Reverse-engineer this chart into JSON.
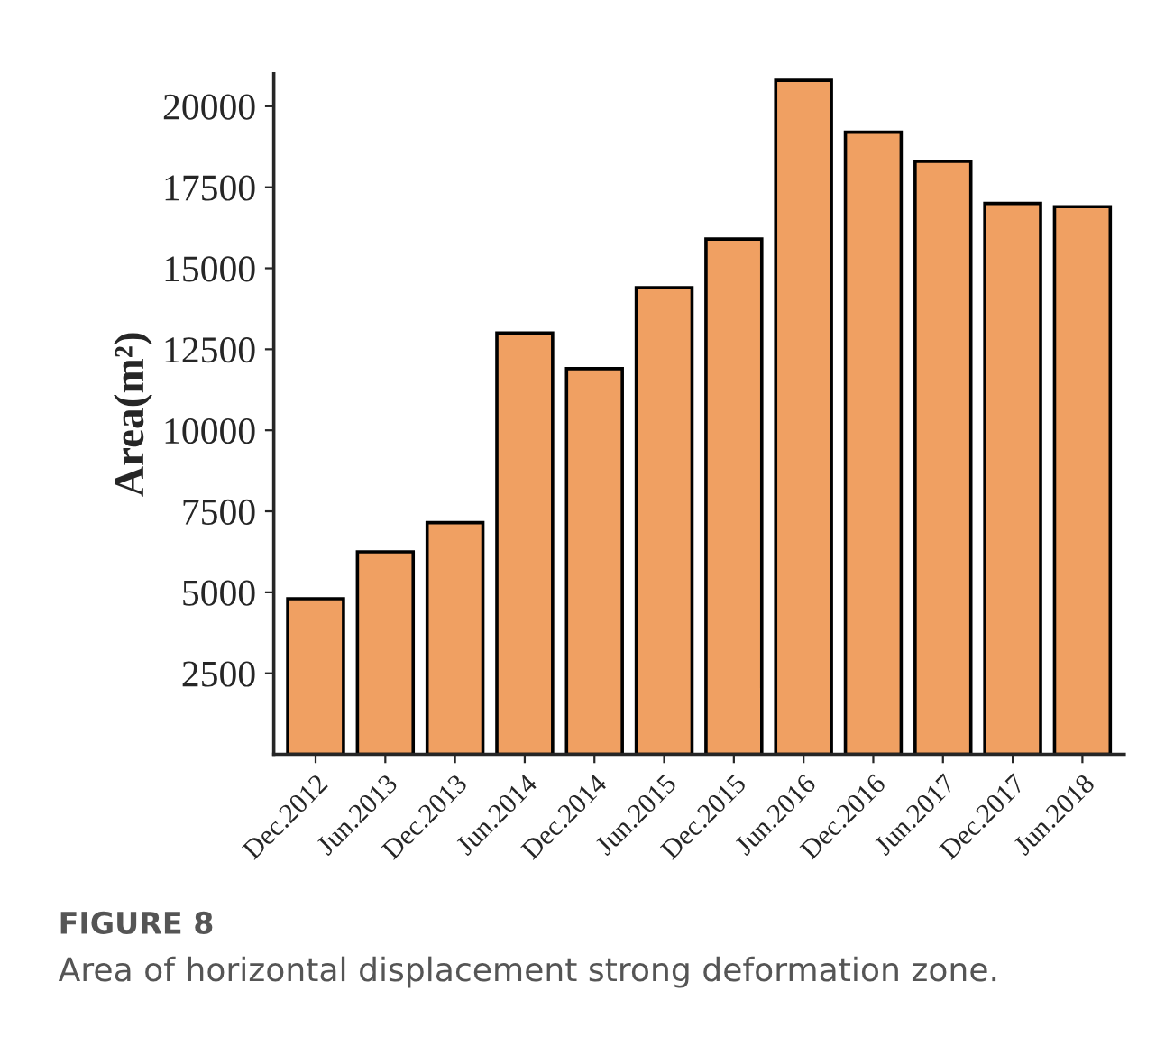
{
  "chart_data": {
    "type": "bar",
    "ylabel": "Area(m²)",
    "categories": [
      "Dec.2012",
      "Jun.2013",
      "Dec.2013",
      "Jun.2014",
      "Dec.2014",
      "Jun.2015",
      "Dec.2015",
      "Jun.2016",
      "Dec.2016",
      "Jun.2017",
      "Dec.2017",
      "Jun.2018"
    ],
    "values": [
      4800,
      6250,
      7150,
      13000,
      11900,
      14400,
      15900,
      20800,
      19200,
      18300,
      17000,
      16900
    ],
    "color": "#f0a062",
    "ylim": [
      0,
      21000
    ],
    "yticks": [
      2500,
      5000,
      7500,
      10000,
      12500,
      15000,
      17500,
      20000
    ],
    "grid": false,
    "annotations": [
      "FIGURE 8",
      "Area of horizontal displacement strong deformation zone."
    ]
  }
}
